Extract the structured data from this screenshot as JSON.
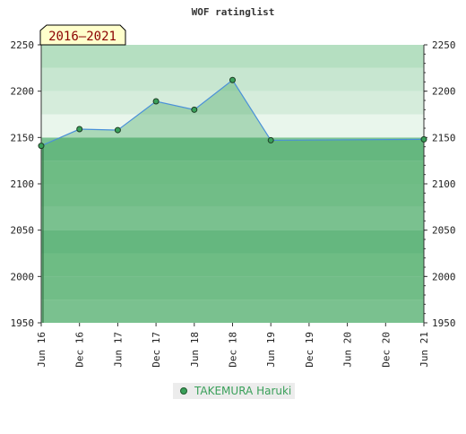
{
  "chart_data": {
    "type": "area",
    "title": "WOF ratinglist",
    "period_badge": "2016–2021",
    "x_ticks": [
      "Jun 16",
      "Dec 16",
      "Jun 17",
      "Dec 17",
      "Jun 18",
      "Dec 18",
      "Jun 19",
      "Dec 19",
      "Jun 20",
      "Dec 20",
      "Jun 21"
    ],
    "y_ticks": [
      1950,
      2000,
      2050,
      2100,
      2150,
      2200,
      2250
    ],
    "ylim": [
      1950,
      2250
    ],
    "series": [
      {
        "name": "TAKEMURA Haruki",
        "points": [
          {
            "x": "Jun 16",
            "y": 2141
          },
          {
            "x": "Dec 16",
            "y": 2159
          },
          {
            "x": "Jun 17",
            "y": 2158
          },
          {
            "x": "Dec 17",
            "y": 2189
          },
          {
            "x": "Jun 18",
            "y": 2180
          },
          {
            "x": "Dec 18",
            "y": 2212
          },
          {
            "x": "Jun 19",
            "y": 2147
          },
          {
            "x": "Jun 21",
            "y": 2148
          }
        ]
      }
    ],
    "legend_position": "bottom-center",
    "colors": {
      "line": "#4a90d9",
      "marker": "#3aa05a",
      "badge_bg": "#ffffcc",
      "badge_text": "#8b0000"
    }
  }
}
